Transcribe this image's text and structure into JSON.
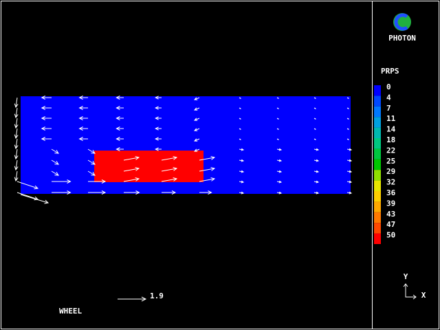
{
  "logo": {
    "text": "PHOTON"
  },
  "legend": {
    "title": "PRPS",
    "items": [
      {
        "label": "0",
        "color": "#0000ff"
      },
      {
        "label": "4",
        "color": "#0048ff"
      },
      {
        "label": "7",
        "color": "#0078ff"
      },
      {
        "label": "11",
        "color": "#00a0e0"
      },
      {
        "label": "14",
        "color": "#00b8b0"
      },
      {
        "label": "18",
        "color": "#00c880"
      },
      {
        "label": "22",
        "color": "#00c840"
      },
      {
        "label": "25",
        "color": "#00c800"
      },
      {
        "label": "29",
        "color": "#90e000"
      },
      {
        "label": "32",
        "color": "#e8e800"
      },
      {
        "label": "36",
        "color": "#ffd000"
      },
      {
        "label": "39",
        "color": "#ffa800"
      },
      {
        "label": "43",
        "color": "#ff7800"
      },
      {
        "label": "47",
        "color": "#ff4800"
      },
      {
        "label": "50",
        "color": "#ff0000"
      }
    ]
  },
  "vector_scale": {
    "label": "1.9"
  },
  "object_label": "WHEEL",
  "axes": {
    "y": "Y",
    "x": "X"
  }
}
